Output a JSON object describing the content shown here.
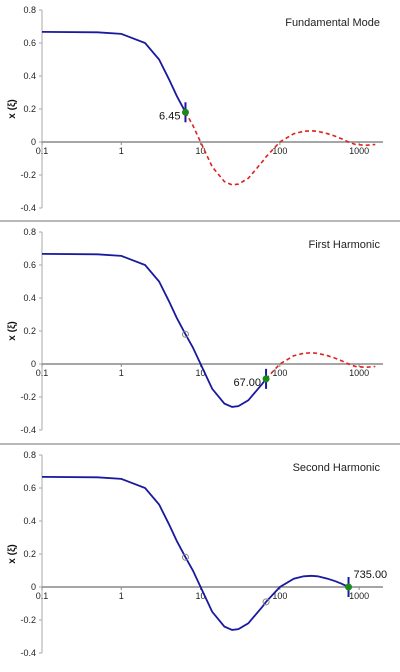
{
  "colors": {
    "fitted_line": "#1a1a9e",
    "continuation": "#e0201c",
    "marker_fill": "#1a8a1a",
    "axis": "#888888",
    "open_marker": "#888888"
  },
  "chart_data": [
    {
      "type": "line",
      "title": "Fundamental Mode",
      "xlabel": "",
      "ylabel": "x (ξ)",
      "x_scale": "log",
      "xlim": [
        0.1,
        2000
      ],
      "ylim": [
        -0.4,
        0.8
      ],
      "x_ticks": [
        "0.1",
        "1",
        "10",
        "100",
        "1000"
      ],
      "y_ticks": [
        "0.8",
        "0.6",
        "0.4",
        "0.2",
        "0",
        "-0.2",
        "-0.4"
      ],
      "boundary": {
        "x": 6.45,
        "label": "6.45"
      },
      "open_markers": [],
      "series": [
        {
          "style": "solid",
          "x": [
            0.1,
            0.5,
            1,
            2,
            3,
            4,
            5,
            6.45
          ],
          "y": [
            0.667,
            0.665,
            0.655,
            0.6,
            0.5,
            0.38,
            0.28,
            0.18
          ]
        },
        {
          "style": "dashed",
          "x": [
            6.45,
            8,
            10,
            14,
            20,
            25,
            30,
            40,
            60,
            67,
            100,
            150,
            200,
            250,
            300,
            400,
            500,
            600,
            735,
            900,
            1200,
            1600
          ],
          "y": [
            0.18,
            0.1,
            0.0,
            -0.15,
            -0.24,
            -0.26,
            -0.255,
            -0.22,
            -0.12,
            -0.09,
            0.0,
            0.05,
            0.065,
            0.068,
            0.065,
            0.05,
            0.035,
            0.02,
            0.0,
            -0.015,
            -0.02,
            -0.015
          ]
        }
      ]
    },
    {
      "type": "line",
      "title": "First Harmonic",
      "xlabel": "",
      "ylabel": "x (ξ)",
      "x_scale": "log",
      "xlim": [
        0.1,
        2000
      ],
      "ylim": [
        -0.4,
        0.8
      ],
      "x_ticks": [
        "0.1",
        "1",
        "10",
        "100",
        "1000"
      ],
      "y_ticks": [
        "0.8",
        "0.6",
        "0.4",
        "0.2",
        "0",
        "-0.2",
        "-0.4"
      ],
      "boundary": {
        "x": 67.0,
        "label": "67.00"
      },
      "open_markers": [
        {
          "x": 6.45,
          "y": 0.18
        }
      ],
      "series": [
        {
          "style": "solid",
          "x": [
            0.1,
            0.5,
            1,
            2,
            3,
            4,
            5,
            6.45,
            8,
            10,
            14,
            20,
            25,
            30,
            40,
            60,
            67
          ],
          "y": [
            0.667,
            0.665,
            0.655,
            0.6,
            0.5,
            0.38,
            0.28,
            0.18,
            0.1,
            0.0,
            -0.15,
            -0.24,
            -0.26,
            -0.255,
            -0.22,
            -0.12,
            -0.09
          ]
        },
        {
          "style": "dashed",
          "x": [
            67,
            100,
            150,
            200,
            250,
            300,
            400,
            500,
            600,
            735,
            900,
            1200,
            1600
          ],
          "y": [
            -0.09,
            0.0,
            0.05,
            0.065,
            0.068,
            0.065,
            0.05,
            0.035,
            0.02,
            0.0,
            -0.015,
            -0.02,
            -0.015
          ]
        }
      ]
    },
    {
      "type": "line",
      "title": "Second Harmonic",
      "xlabel": "",
      "ylabel": "x (ξ)",
      "x_scale": "log",
      "xlim": [
        0.1,
        2000
      ],
      "ylim": [
        -0.4,
        0.8
      ],
      "x_ticks": [
        "0.1",
        "1",
        "10",
        "100",
        "1000"
      ],
      "y_ticks": [
        "0.8",
        "0.6",
        "0.4",
        "0.2",
        "0",
        "-0.2",
        "-0.4"
      ],
      "boundary": {
        "x": 735.0,
        "label": "735.00"
      },
      "open_markers": [
        {
          "x": 6.45,
          "y": 0.18
        },
        {
          "x": 67.0,
          "y": -0.09
        }
      ],
      "series": [
        {
          "style": "solid",
          "x": [
            0.1,
            0.5,
            1,
            2,
            3,
            4,
            5,
            6.45,
            8,
            10,
            14,
            20,
            25,
            30,
            40,
            60,
            67,
            100,
            150,
            200,
            250,
            300,
            400,
            500,
            600,
            735
          ],
          "y": [
            0.667,
            0.665,
            0.655,
            0.6,
            0.5,
            0.38,
            0.28,
            0.18,
            0.1,
            0.0,
            -0.15,
            -0.24,
            -0.26,
            -0.255,
            -0.22,
            -0.12,
            -0.09,
            0.0,
            0.05,
            0.065,
            0.068,
            0.065,
            0.05,
            0.035,
            0.02,
            0.0
          ]
        }
      ]
    }
  ]
}
